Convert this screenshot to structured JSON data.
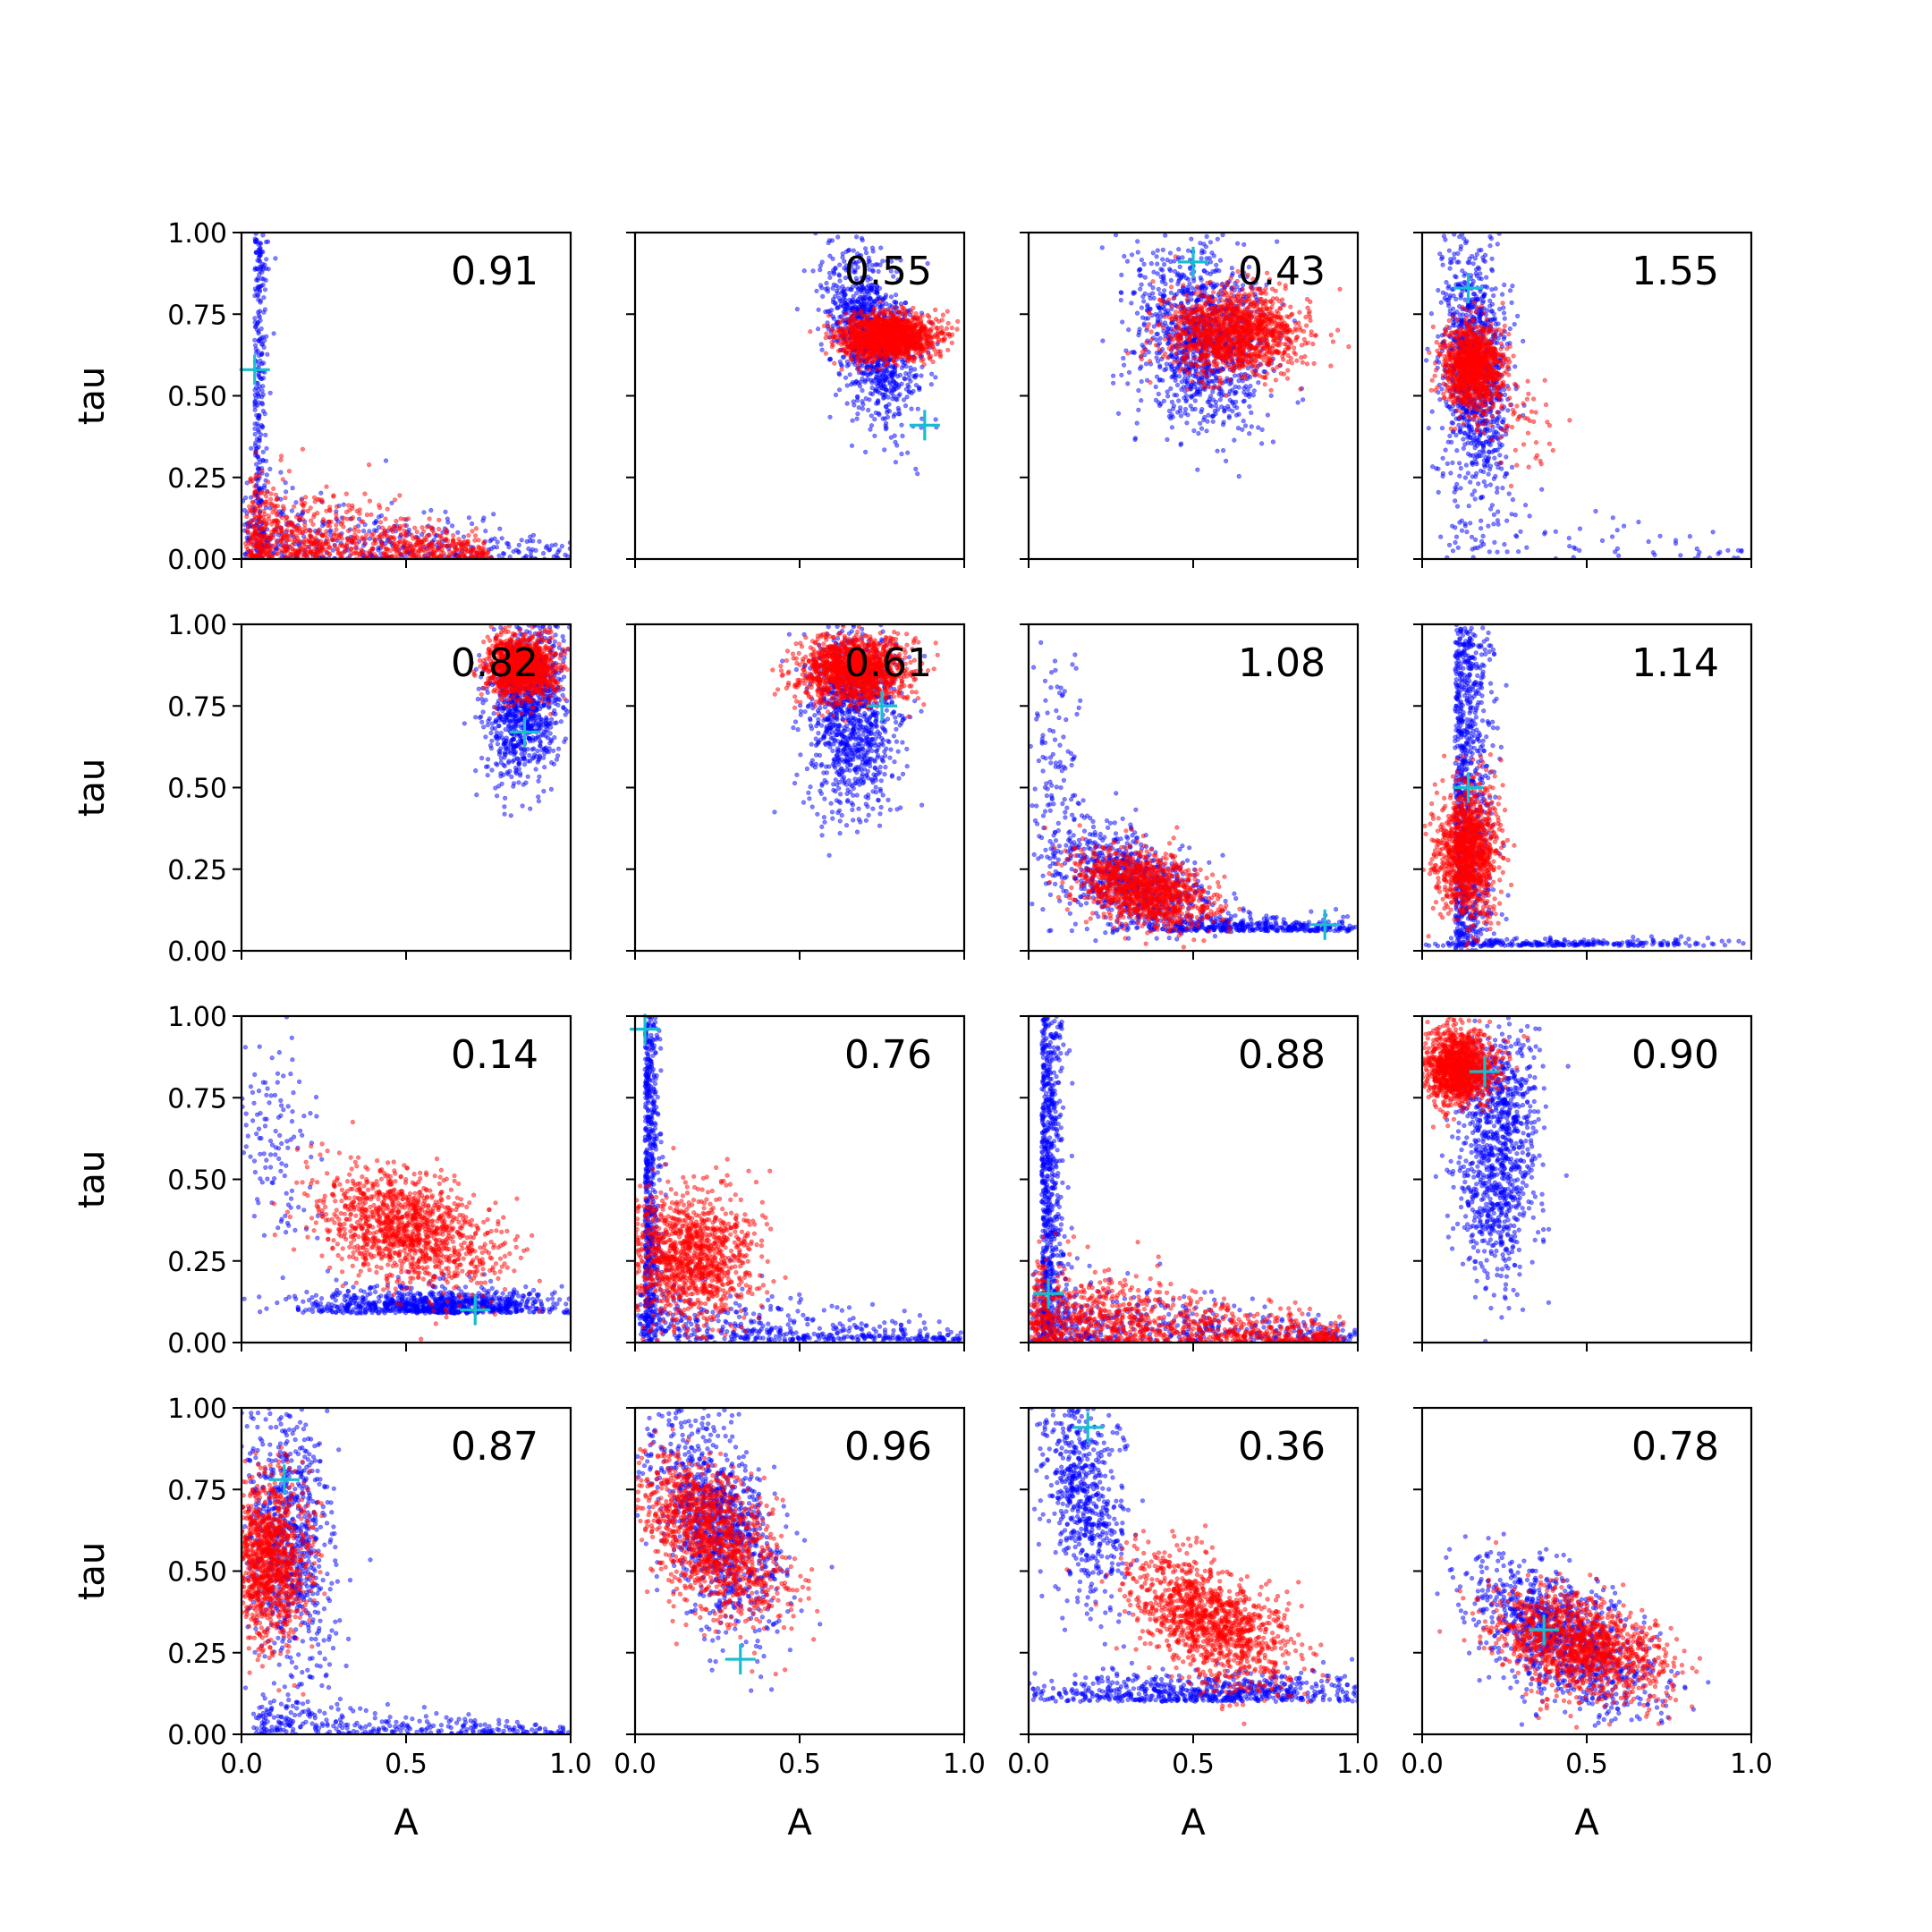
{
  "chart_data": {
    "type": "scatter",
    "layout_rows": 4,
    "layout_cols": 4,
    "xlabel": "A",
    "ylabel": "tau",
    "xlim": [
      0,
      1
    ],
    "ylim": [
      0,
      1
    ],
    "xticks": [
      "0.0",
      "0.5",
      "1.0"
    ],
    "yticks": [
      "0.00",
      "0.25",
      "0.50",
      "0.75",
      "1.00"
    ],
    "grid": false,
    "colors": {
      "series_a": "#0000ff",
      "series_b": "#ff0000",
      "marker": "#17becf"
    },
    "panels": [
      {
        "label": "0.91",
        "blue": [
          {
            "shape": "vstrip",
            "x": 0.04,
            "y": 0.72,
            "sx": 0.018,
            "sy": 0.2,
            "n": 260,
            "tmin": 0.03,
            "tmax": 1.0
          },
          {
            "shape": "decay",
            "x": 0.02,
            "y": 0.0,
            "sx": 0.25,
            "sy": 0.12,
            "n": 380,
            "xmax": 1.0
          },
          {
            "shape": "floor",
            "x": 0.45,
            "y": 0.0,
            "sx": 0.55,
            "sy": 0.006,
            "n": 90
          }
        ],
        "red": [
          {
            "shape": "decay",
            "x": 0.03,
            "y": 0.0,
            "sx": 0.22,
            "sy": 0.12,
            "n": 850,
            "xmax": 0.75
          }
        ],
        "marker": [
          0.04,
          0.58
        ]
      },
      {
        "label": "0.55",
        "blue": [
          {
            "shape": "blob",
            "x": 0.72,
            "y": 0.68,
            "sx": 0.07,
            "sy": 0.13,
            "rho": -0.45,
            "n": 1000
          }
        ],
        "red": [
          {
            "shape": "blob",
            "x": 0.77,
            "y": 0.68,
            "sx": 0.07,
            "sy": 0.035,
            "rho": 0.0,
            "n": 1400
          }
        ],
        "marker": [
          0.88,
          0.41
        ]
      },
      {
        "label": "0.43",
        "blue": [
          {
            "shape": "blob",
            "x": 0.52,
            "y": 0.68,
            "sx": 0.1,
            "sy": 0.14,
            "rho": -0.2,
            "n": 1100
          }
        ],
        "red": [
          {
            "shape": "blob",
            "x": 0.62,
            "y": 0.69,
            "sx": 0.1,
            "sy": 0.065,
            "rho": 0.0,
            "n": 1300
          }
        ],
        "marker": [
          0.5,
          0.91
        ]
      },
      {
        "label": "1.55",
        "blue": [
          {
            "shape": "blob",
            "x": 0.16,
            "y": 0.58,
            "sx": 0.05,
            "sy": 0.2,
            "rho": -0.2,
            "n": 1000
          },
          {
            "shape": "decay",
            "x": 0.08,
            "y": 0.0,
            "sx": 0.25,
            "sy": 0.12,
            "n": 90,
            "xmax": 1.0
          }
        ],
        "red": [
          {
            "shape": "blob",
            "x": 0.15,
            "y": 0.59,
            "sx": 0.045,
            "sy": 0.065,
            "rho": 0.0,
            "n": 1100
          },
          {
            "shape": "blob",
            "x": 0.28,
            "y": 0.42,
            "sx": 0.07,
            "sy": 0.08,
            "rho": -0.3,
            "n": 60
          }
        ],
        "marker": [
          0.14,
          0.83
        ]
      },
      {
        "label": "0.82",
        "blue": [
          {
            "shape": "blob",
            "x": 0.86,
            "y": 0.76,
            "sx": 0.06,
            "sy": 0.12,
            "rho": 0.2,
            "n": 1000
          }
        ],
        "red": [
          {
            "shape": "blob",
            "x": 0.85,
            "y": 0.87,
            "sx": 0.05,
            "sy": 0.045,
            "rho": 0.0,
            "n": 1400
          }
        ],
        "marker": [
          0.86,
          0.67
        ]
      },
      {
        "label": "0.61",
        "blue": [
          {
            "shape": "blob",
            "x": 0.66,
            "y": 0.72,
            "sx": 0.07,
            "sy": 0.14,
            "rho": 0.0,
            "n": 1000
          }
        ],
        "red": [
          {
            "shape": "blob",
            "x": 0.66,
            "y": 0.86,
            "sx": 0.08,
            "sy": 0.05,
            "rho": 0.0,
            "n": 1400
          }
        ],
        "marker": [
          0.75,
          0.75
        ]
      },
      {
        "label": "1.08",
        "blue": [
          {
            "shape": "blob",
            "x": 0.3,
            "y": 0.22,
            "sx": 0.12,
            "sy": 0.08,
            "rho": -0.5,
            "n": 700
          },
          {
            "shape": "floor",
            "x": 0.7,
            "y": 0.06,
            "sx": 0.22,
            "sy": 0.03,
            "n": 450
          },
          {
            "shape": "blob",
            "x": 0.08,
            "y": 0.5,
            "sx": 0.05,
            "sy": 0.2,
            "rho": 0.0,
            "n": 130
          }
        ],
        "red": [
          {
            "shape": "blob",
            "x": 0.35,
            "y": 0.19,
            "sx": 0.1,
            "sy": 0.06,
            "rho": -0.4,
            "n": 1100
          }
        ],
        "marker": [
          0.9,
          0.08
        ]
      },
      {
        "label": "1.14",
        "blue": [
          {
            "shape": "vstrip",
            "x": 0.1,
            "y": 0.5,
            "sx": 0.05,
            "sy": 0.28,
            "n": 900,
            "tmin": 0.0,
            "tmax": 1.0
          },
          {
            "shape": "floor",
            "x": 0.45,
            "y": 0.015,
            "sx": 0.25,
            "sy": 0.015,
            "n": 250
          }
        ],
        "red": [
          {
            "shape": "blob",
            "x": 0.14,
            "y": 0.3,
            "sx": 0.045,
            "sy": 0.1,
            "rho": 0.0,
            "n": 1200
          }
        ],
        "marker": [
          0.14,
          0.5
        ]
      },
      {
        "label": "0.14",
        "blue": [
          {
            "shape": "floor",
            "x": 0.6,
            "y": 0.09,
            "sx": 0.2,
            "sy": 0.05,
            "n": 900
          },
          {
            "shape": "blob",
            "x": 0.12,
            "y": 0.6,
            "sx": 0.06,
            "sy": 0.15,
            "rho": 0.0,
            "n": 120
          }
        ],
        "red": [
          {
            "shape": "blob",
            "x": 0.5,
            "y": 0.35,
            "sx": 0.13,
            "sy": 0.09,
            "rho": -0.4,
            "n": 1200
          }
        ],
        "marker": [
          0.71,
          0.1
        ]
      },
      {
        "label": "0.76",
        "blue": [
          {
            "shape": "vstrip",
            "x": 0.03,
            "y": 0.55,
            "sx": 0.02,
            "sy": 0.28,
            "n": 600,
            "tmin": 0.0,
            "tmax": 1.0
          },
          {
            "shape": "decay",
            "x": 0.02,
            "y": 0.0,
            "sx": 0.3,
            "sy": 0.1,
            "n": 400,
            "xmax": 1.0
          },
          {
            "shape": "floor",
            "x": 0.65,
            "y": 0.01,
            "sx": 0.25,
            "sy": 0.008,
            "n": 100
          }
        ],
        "red": [
          {
            "shape": "blob",
            "x": 0.16,
            "y": 0.26,
            "sx": 0.1,
            "sy": 0.1,
            "rho": 0.0,
            "n": 1200
          }
        ],
        "marker": [
          0.03,
          0.96
        ]
      },
      {
        "label": "0.88",
        "blue": [
          {
            "shape": "vstrip",
            "x": 0.04,
            "y": 0.5,
            "sx": 0.03,
            "sy": 0.3,
            "n": 700,
            "tmin": 0.0,
            "tmax": 1.0
          },
          {
            "shape": "decay",
            "x": 0.02,
            "y": 0.0,
            "sx": 0.3,
            "sy": 0.1,
            "n": 500,
            "xmax": 1.0
          }
        ],
        "red": [
          {
            "shape": "decay",
            "x": 0.02,
            "y": 0.0,
            "sx": 0.25,
            "sy": 0.12,
            "n": 1000,
            "xmax": 0.95
          }
        ],
        "marker": [
          0.06,
          0.15
        ]
      },
      {
        "label": "0.90",
        "blue": [
          {
            "shape": "blob",
            "x": 0.23,
            "y": 0.6,
            "sx": 0.06,
            "sy": 0.2,
            "rho": 0.1,
            "n": 1000
          }
        ],
        "red": [
          {
            "shape": "blob",
            "x": 0.11,
            "y": 0.84,
            "sx": 0.055,
            "sy": 0.055,
            "rho": 0.0,
            "n": 1300
          }
        ],
        "marker": [
          0.19,
          0.83
        ]
      },
      {
        "label": "0.87",
        "blue": [
          {
            "shape": "blob",
            "x": 0.14,
            "y": 0.6,
            "sx": 0.07,
            "sy": 0.22,
            "rho": -0.2,
            "n": 800
          },
          {
            "shape": "decay",
            "x": 0.05,
            "y": 0.0,
            "sx": 0.35,
            "sy": 0.05,
            "n": 300,
            "xmax": 1.0
          }
        ],
        "red": [
          {
            "shape": "blob",
            "x": 0.08,
            "y": 0.53,
            "sx": 0.06,
            "sy": 0.12,
            "rho": 0.0,
            "n": 1100
          }
        ],
        "marker": [
          0.13,
          0.78
        ]
      },
      {
        "label": "0.96",
        "blue": [
          {
            "shape": "blob",
            "x": 0.25,
            "y": 0.65,
            "sx": 0.1,
            "sy": 0.17,
            "rho": -0.5,
            "n": 1000
          }
        ],
        "red": [
          {
            "shape": "blob",
            "x": 0.23,
            "y": 0.6,
            "sx": 0.11,
            "sy": 0.12,
            "rho": -0.5,
            "n": 1200
          }
        ],
        "marker": [
          0.32,
          0.23
        ]
      },
      {
        "label": "0.36",
        "blue": [
          {
            "shape": "blob",
            "x": 0.17,
            "y": 0.72,
            "sx": 0.06,
            "sy": 0.15,
            "rho": -0.3,
            "n": 600
          },
          {
            "shape": "floor",
            "x": 0.55,
            "y": 0.1,
            "sx": 0.3,
            "sy": 0.06,
            "n": 700
          }
        ],
        "red": [
          {
            "shape": "blob",
            "x": 0.55,
            "y": 0.35,
            "sx": 0.12,
            "sy": 0.1,
            "rho": -0.5,
            "n": 1200
          }
        ],
        "marker": [
          0.18,
          0.94
        ]
      },
      {
        "label": "0.78",
        "blue": [
          {
            "shape": "blob",
            "x": 0.42,
            "y": 0.3,
            "sx": 0.14,
            "sy": 0.12,
            "rho": -0.6,
            "n": 1000
          }
        ],
        "red": [
          {
            "shape": "blob",
            "x": 0.48,
            "y": 0.27,
            "sx": 0.13,
            "sy": 0.08,
            "rho": -0.4,
            "n": 1200
          }
        ],
        "marker": [
          0.37,
          0.32
        ]
      }
    ]
  }
}
